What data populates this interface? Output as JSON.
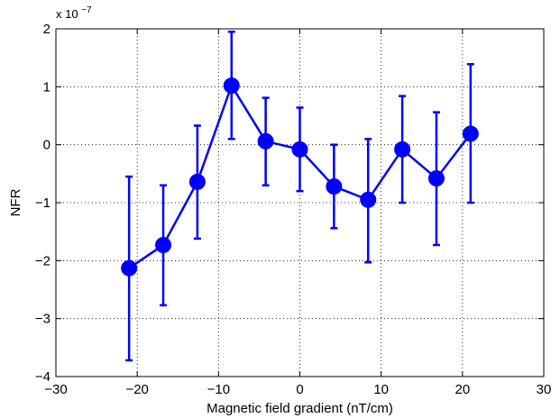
{
  "chart_data": {
    "type": "scatter",
    "title": "",
    "xlabel": "Magnetic field gradient (nT/cm)",
    "ylabel": "NFR",
    "y_multiplier_label": "x 10",
    "y_multiplier_exponent": "−7",
    "xlim": [
      -30,
      30
    ],
    "ylim": [
      -4,
      2
    ],
    "x_ticks": [
      -30,
      -20,
      -10,
      0,
      10,
      20,
      30
    ],
    "y_ticks": [
      -4,
      -3,
      -2,
      -1,
      0,
      1,
      2
    ],
    "x_tick_labels": [
      "−30",
      "−20",
      "−10",
      "0",
      "10",
      "20",
      "30"
    ],
    "y_tick_labels": [
      "−4",
      "−3",
      "−2",
      "−1",
      "0",
      "1",
      "2"
    ],
    "grid": true,
    "series": [
      {
        "color": "#0000ff",
        "x": [
          -21,
          -16.8,
          -12.6,
          -8.4,
          -4.2,
          0,
          4.2,
          8.4,
          12.6,
          16.8,
          21
        ],
        "y": [
          -2.13,
          -1.73,
          -0.64,
          1.02,
          0.06,
          -0.08,
          -0.72,
          -0.95,
          -0.08,
          -0.58,
          0.19
        ],
        "y_err_low": [
          -3.72,
          -2.77,
          -1.62,
          0.1,
          -0.7,
          -0.8,
          -1.44,
          -2.03,
          -1.0,
          -1.73,
          -1.0
        ],
        "y_err_high": [
          -0.55,
          -0.7,
          0.33,
          1.95,
          0.81,
          0.64,
          0.0,
          0.1,
          0.84,
          0.56,
          1.39
        ]
      }
    ]
  }
}
